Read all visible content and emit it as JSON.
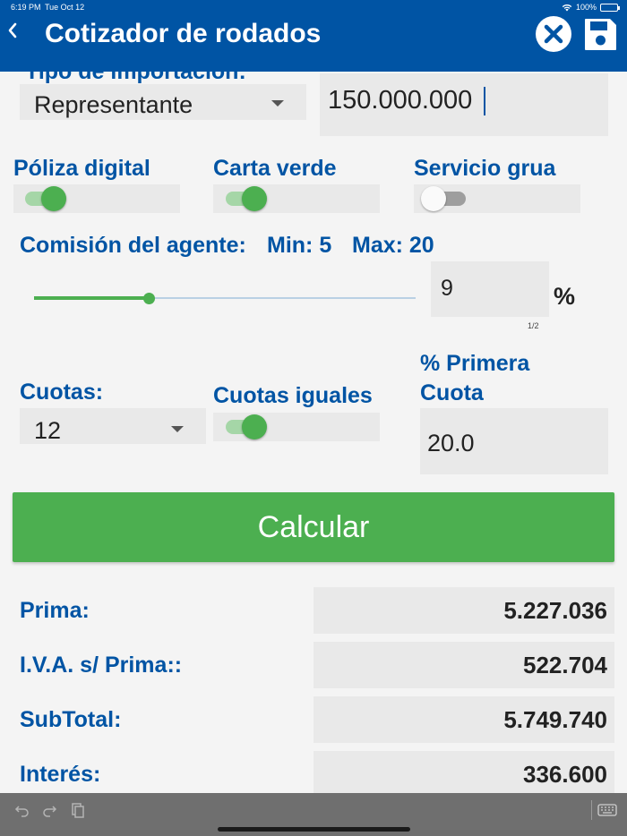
{
  "status_bar": {
    "time": "6:19 PM",
    "date": "Tue Oct 12",
    "battery": "100%"
  },
  "header": {
    "title": "Cotizador de rodados",
    "back_icon": "chevron-left-icon",
    "close_icon": "close-circle-icon",
    "save_icon": "floppy-disk-icon"
  },
  "form": {
    "import_type": {
      "label": "Tipo de importación:",
      "value": "Representante"
    },
    "amount": "150.000.000",
    "toggles": [
      {
        "label": "Póliza digital",
        "on": true
      },
      {
        "label": "Carta verde",
        "on": true
      },
      {
        "label": "Servicio grua",
        "on": false
      }
    ],
    "commission": {
      "label": "Comisión del agente:",
      "min_label": "Min: 5",
      "max_label": "Max: 20",
      "value": "9",
      "unit": "%",
      "keyboard_hint": "1/2",
      "slider_level": 0.3
    },
    "installments": {
      "label": "Cuotas:",
      "value": "12"
    },
    "equal_installments": {
      "label": "Cuotas iguales",
      "on": true
    },
    "first_installment": {
      "label_line1": "% Primera",
      "label_line2": "Cuota",
      "value": "20.0"
    }
  },
  "calculate_button": "Calcular",
  "results": [
    {
      "label": "Prima:",
      "value": "5.227.036"
    },
    {
      "label": "I.V.A. s/ Prima::",
      "value": "522.704"
    },
    {
      "label": "SubTotal:",
      "value": "5.749.740"
    },
    {
      "label": "Interés:",
      "value": "336.600"
    }
  ],
  "colors": {
    "primary": "#0054a4",
    "accent": "#4caf50",
    "field_bg": "#e9e9e9"
  },
  "toolbar_icons": [
    "undo-icon",
    "redo-icon",
    "paste-icon",
    "keyboard-icon"
  ]
}
